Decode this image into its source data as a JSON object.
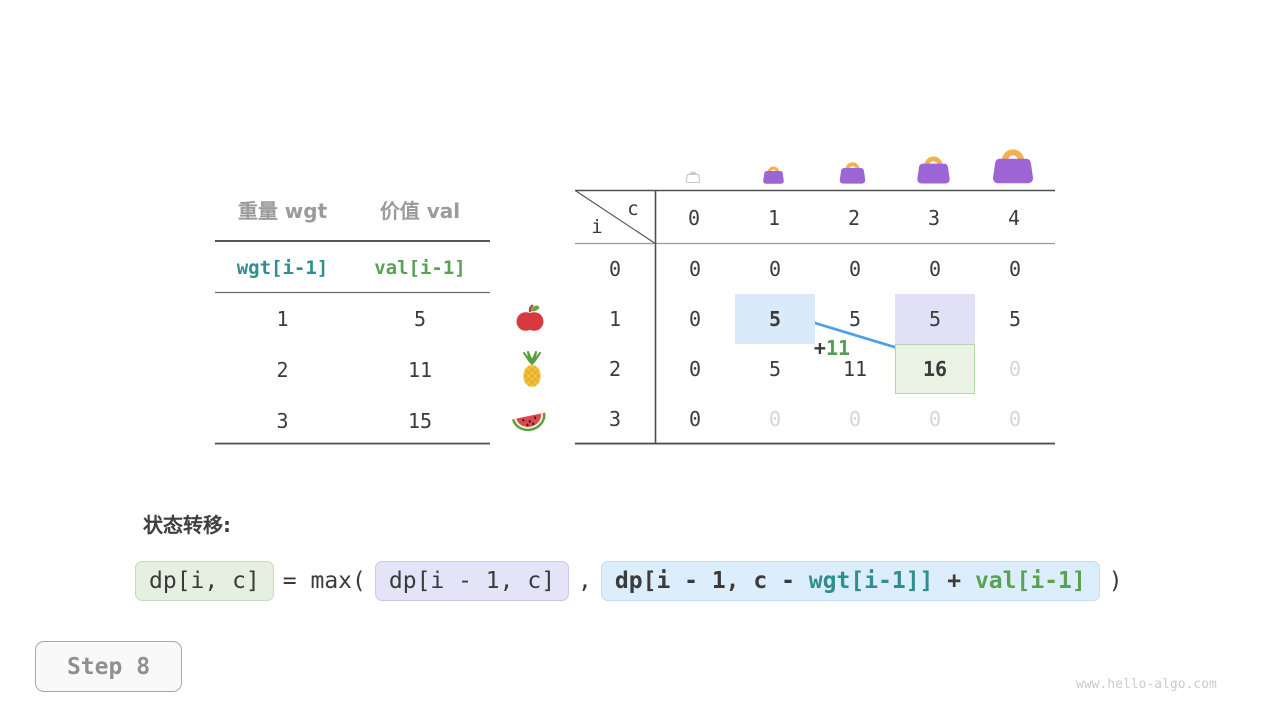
{
  "items_table": {
    "col1_header": "重量 wgt",
    "col2_header": "价值 val",
    "var_row": {
      "wgt": "wgt[i-1]",
      "val": "val[i-1]"
    },
    "rows": [
      {
        "wgt": "1",
        "val": "5"
      },
      {
        "wgt": "2",
        "val": "11"
      },
      {
        "wgt": "3",
        "val": "15"
      }
    ]
  },
  "icons": {
    "fruits": [
      "apple-icon",
      "pineapple-icon",
      "watermelon-icon"
    ],
    "capacity_bags": [
      "bag-outline-icon",
      "bag-small-icon",
      "bag-medium-icon",
      "bag-large-icon",
      "bag-xlarge-icon"
    ]
  },
  "dp_table": {
    "corner_top": "c",
    "corner_bottom": "i",
    "col_headers": [
      "0",
      "1",
      "2",
      "3",
      "4"
    ],
    "row_headers": [
      "0",
      "1",
      "2",
      "3"
    ],
    "cells": [
      [
        {
          "v": "0"
        },
        {
          "v": "0"
        },
        {
          "v": "0"
        },
        {
          "v": "0"
        },
        {
          "v": "0"
        }
      ],
      [
        {
          "v": "0"
        },
        {
          "v": "5",
          "b": true,
          "hl": "blue"
        },
        {
          "v": "5"
        },
        {
          "v": "5",
          "hl": "lav"
        },
        {
          "v": "5"
        }
      ],
      [
        {
          "v": "0"
        },
        {
          "v": "5"
        },
        {
          "v": "11"
        },
        {
          "v": "16",
          "b": true,
          "hl": "green"
        },
        {
          "v": "0",
          "m": true
        }
      ],
      [
        {
          "v": "0"
        },
        {
          "v": "0",
          "m": true
        },
        {
          "v": "0",
          "m": true
        },
        {
          "v": "0",
          "m": true
        },
        {
          "v": "0",
          "m": true
        }
      ]
    ],
    "annotation": {
      "plus": "+",
      "value": "11"
    }
  },
  "formula": {
    "heading": "状态转移:",
    "lhs": "dp[i, c]",
    "mid": "= max(",
    "arg1": "dp[i - 1, c]",
    "comma": ",",
    "arg2_parts": [
      {
        "t": "dp[i - 1, c - ",
        "c": "dark"
      },
      {
        "t": "wgt[i-1]]",
        "c": "teal"
      },
      {
        "t": " + ",
        "c": "dark"
      },
      {
        "t": "val[i-1]",
        "c": "green"
      }
    ],
    "close": ")"
  },
  "step_label": "Step 8",
  "watermark": "www.hello-algo.com",
  "colors": {
    "accent_blue_arrow": "#4da0e8",
    "teal": "#2f8e8e",
    "green": "#5aa155",
    "highlight_blue": "#d9ebfa",
    "highlight_lavender": "#e2e0f7",
    "highlight_green": "#eaf2e4",
    "bag_purple": "#9c64d4",
    "bag_handle": "#f3b04f"
  }
}
